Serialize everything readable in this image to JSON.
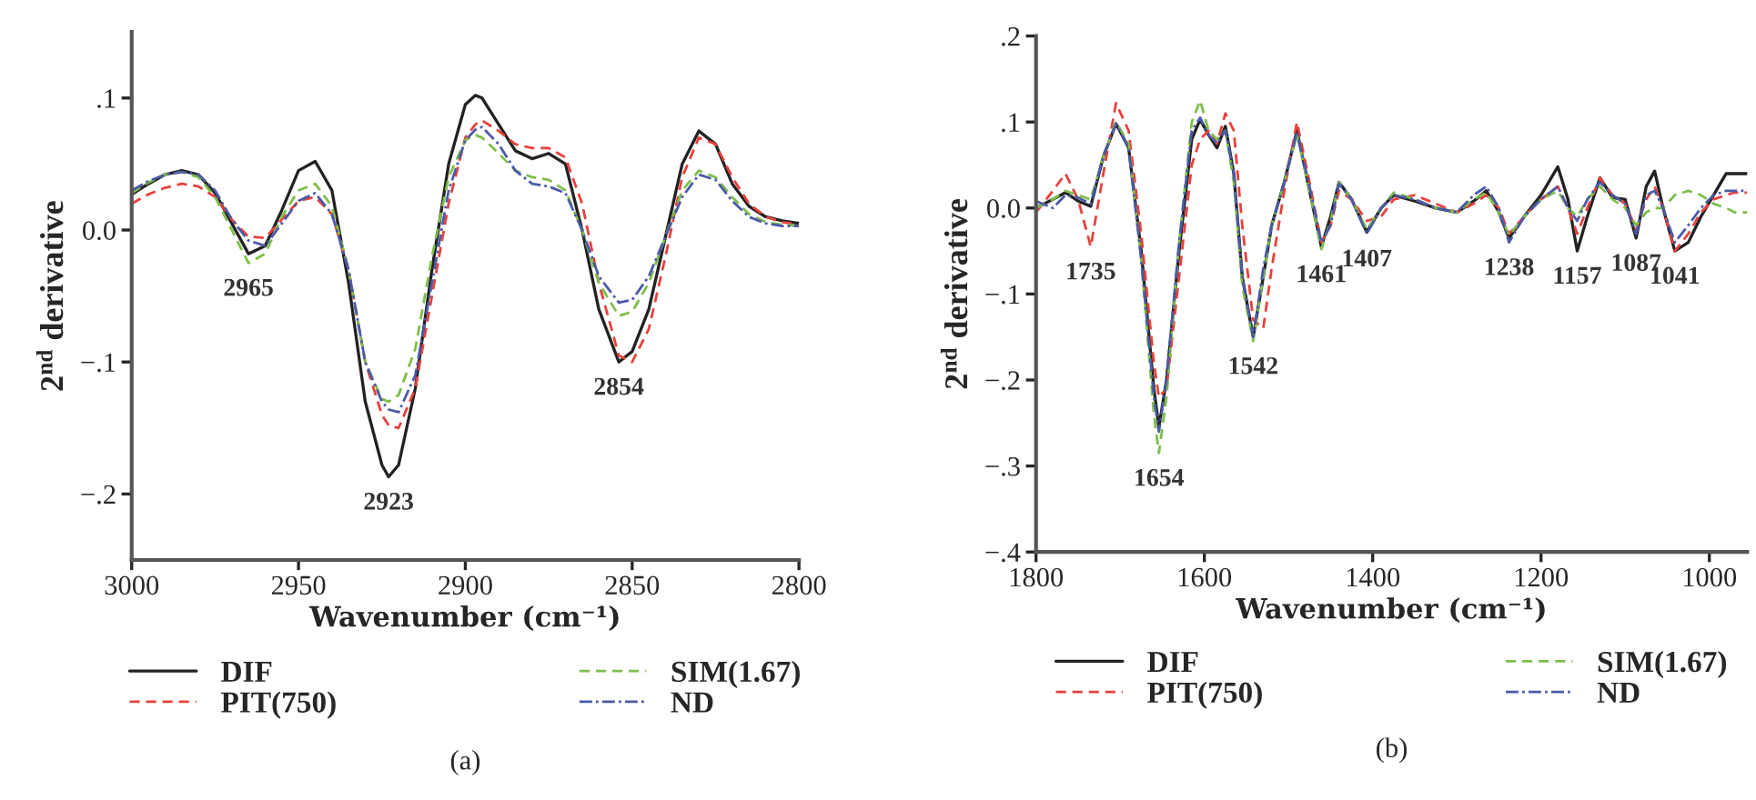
{
  "chart_data": [
    {
      "type": "line",
      "ylabel": "2$^{nd}$ derivative",
      "xlabel": "Wavenumber (cm⁻¹)",
      "x": [
        3000,
        2995,
        2990,
        2985,
        2980,
        2975,
        2970,
        2965,
        2960,
        2955,
        2950,
        2945,
        2940,
        2935,
        2930,
        2925,
        2923,
        2920,
        2915,
        2910,
        2905,
        2900,
        2897,
        2895,
        2890,
        2885,
        2880,
        2875,
        2870,
        2865,
        2860,
        2854,
        2850,
        2845,
        2840,
        2835,
        2830,
        2825,
        2820,
        2815,
        2810,
        2805,
        2800
      ],
      "series": [
        {
          "name": "DIF",
          "color": "#222222",
          "line_style": "solid",
          "values": [
            0.027,
            0.035,
            0.042,
            0.045,
            0.042,
            0.028,
            0.005,
            -0.018,
            -0.012,
            0.015,
            0.045,
            0.052,
            0.03,
            -0.04,
            -0.13,
            -0.178,
            -0.187,
            -0.178,
            -0.12,
            -0.03,
            0.05,
            0.095,
            0.102,
            0.1,
            0.08,
            0.06,
            0.054,
            0.058,
            0.05,
            0.0,
            -0.06,
            -0.1,
            -0.092,
            -0.06,
            -0.005,
            0.05,
            0.075,
            0.065,
            0.035,
            0.018,
            0.01,
            0.007,
            0.005
          ]
        },
        {
          "name": "PIT(750)",
          "color": "#e8413c",
          "line_style": "dashed",
          "values": [
            0.02,
            0.027,
            0.032,
            0.035,
            0.033,
            0.025,
            0.008,
            -0.005,
            -0.006,
            0.008,
            0.022,
            0.025,
            0.012,
            -0.03,
            -0.1,
            -0.14,
            -0.148,
            -0.15,
            -0.12,
            -0.05,
            0.02,
            0.07,
            0.08,
            0.083,
            0.075,
            0.065,
            0.062,
            0.062,
            0.055,
            0.02,
            -0.04,
            -0.095,
            -0.1,
            -0.075,
            -0.02,
            0.04,
            0.07,
            0.065,
            0.04,
            0.02,
            0.01,
            0.006,
            0.004
          ]
        },
        {
          "name": "SIM(1.67)",
          "color": "#7dbf4a",
          "line_style": "dashed",
          "values": [
            0.028,
            0.036,
            0.042,
            0.044,
            0.04,
            0.025,
            0.0,
            -0.025,
            -0.018,
            0.01,
            0.03,
            0.035,
            0.018,
            -0.03,
            -0.1,
            -0.128,
            -0.13,
            -0.125,
            -0.09,
            -0.02,
            0.04,
            0.068,
            0.072,
            0.07,
            0.058,
            0.045,
            0.04,
            0.038,
            0.03,
            0.0,
            -0.04,
            -0.065,
            -0.062,
            -0.04,
            -0.005,
            0.03,
            0.045,
            0.04,
            0.025,
            0.012,
            0.006,
            0.004,
            0.003
          ]
        },
        {
          "name": "ND",
          "color": "#4b5aa8",
          "line_style": "dashdot",
          "values": [
            0.03,
            0.037,
            0.042,
            0.044,
            0.042,
            0.03,
            0.008,
            -0.008,
            -0.012,
            0.005,
            0.022,
            0.028,
            0.012,
            -0.03,
            -0.1,
            -0.13,
            -0.136,
            -0.138,
            -0.11,
            -0.04,
            0.03,
            0.068,
            0.076,
            0.078,
            0.065,
            0.045,
            0.035,
            0.033,
            0.028,
            0.0,
            -0.035,
            -0.055,
            -0.053,
            -0.035,
            -0.005,
            0.025,
            0.042,
            0.038,
            0.022,
            0.01,
            0.005,
            0.003,
            0.003
          ]
        }
      ],
      "xlim": [
        3000,
        2800
      ],
      "xticks": [
        3000,
        2950,
        2900,
        2850,
        2800
      ],
      "ylim": [
        -0.25,
        0.15
      ],
      "yticks": [
        {
          "value": -0.2,
          "label": "−.2"
        },
        {
          "value": -0.1,
          "label": "−.1"
        },
        {
          "value": 0.0,
          "label": "0.0"
        },
        {
          "value": 0.1,
          "label": ".1"
        }
      ],
      "annotations": [
        {
          "text": "2965",
          "x": 2965,
          "y": -0.025
        },
        {
          "text": "2923",
          "x": 2923,
          "y": -0.187
        },
        {
          "text": "2854",
          "x": 2854,
          "y": -0.1
        },
        "(a)"
      ],
      "grid": false,
      "legend": "bottom",
      "marker": "none"
    },
    {
      "type": "line",
      "ylabel": "2$^{nd}$ derivative",
      "xlabel": "Wavenumber (cm⁻¹)",
      "x": [
        1800,
        1780,
        1765,
        1750,
        1735,
        1720,
        1705,
        1690,
        1675,
        1660,
        1654,
        1645,
        1630,
        1615,
        1605,
        1595,
        1585,
        1575,
        1565,
        1555,
        1542,
        1530,
        1520,
        1505,
        1490,
        1475,
        1461,
        1450,
        1440,
        1425,
        1407,
        1390,
        1375,
        1350,
        1325,
        1300,
        1280,
        1265,
        1250,
        1238,
        1220,
        1200,
        1180,
        1168,
        1157,
        1145,
        1130,
        1115,
        1100,
        1087,
        1075,
        1065,
        1055,
        1041,
        1025,
        1010,
        995,
        980,
        970,
        955
      ],
      "series": [
        {
          "name": "DIF",
          "color": "#222222",
          "line_style": "solid",
          "values": [
            0.0,
            0.01,
            0.018,
            0.008,
            0.002,
            0.06,
            0.098,
            0.07,
            -0.05,
            -0.21,
            -0.255,
            -0.2,
            -0.05,
            0.08,
            0.103,
            0.085,
            0.07,
            0.095,
            0.04,
            -0.08,
            -0.15,
            -0.08,
            -0.02,
            0.03,
            0.09,
            0.02,
            -0.045,
            -0.01,
            0.03,
            0.01,
            -0.028,
            0.0,
            0.015,
            0.008,
            0.0,
            -0.005,
            0.008,
            0.02,
            -0.005,
            -0.035,
            -0.01,
            0.015,
            0.048,
            0.01,
            -0.05,
            -0.01,
            0.035,
            0.012,
            0.01,
            -0.035,
            0.025,
            0.043,
            0.0,
            -0.05,
            -0.04,
            -0.01,
            0.015,
            0.04,
            0.04,
            0.04
          ]
        },
        {
          "name": "PIT(750)",
          "color": "#e8413c",
          "line_style": "dashed",
          "values": [
            -0.005,
            0.02,
            0.04,
            0.01,
            -0.045,
            0.04,
            0.122,
            0.09,
            -0.03,
            -0.18,
            -0.22,
            -0.21,
            -0.08,
            0.05,
            0.08,
            0.09,
            0.075,
            0.11,
            0.09,
            -0.02,
            -0.13,
            -0.14,
            -0.07,
            0.02,
            0.1,
            0.03,
            -0.04,
            -0.02,
            0.02,
            0.01,
            -0.015,
            -0.01,
            0.01,
            0.015,
            0.005,
            -0.005,
            0.005,
            0.015,
            0.0,
            -0.03,
            -0.01,
            0.01,
            0.025,
            0.0,
            -0.03,
            0.0,
            0.035,
            0.015,
            0.005,
            -0.025,
            0.01,
            0.025,
            0.0,
            -0.05,
            -0.03,
            -0.005,
            0.01,
            0.015,
            0.018,
            0.018
          ]
        },
        {
          "name": "SIM(1.67)",
          "color": "#7dbf4a",
          "line_style": "dashed",
          "values": [
            0.0,
            0.01,
            0.02,
            0.015,
            0.01,
            0.06,
            0.1,
            0.075,
            -0.06,
            -0.24,
            -0.285,
            -0.22,
            -0.04,
            0.1,
            0.125,
            0.09,
            0.08,
            0.09,
            0.03,
            -0.09,
            -0.155,
            -0.08,
            -0.02,
            0.03,
            0.085,
            0.02,
            -0.048,
            -0.015,
            0.03,
            0.01,
            -0.025,
            0.0,
            0.018,
            0.01,
            0.0,
            -0.005,
            0.01,
            0.018,
            -0.005,
            -0.032,
            -0.01,
            0.01,
            0.02,
            0.0,
            -0.01,
            0.01,
            0.025,
            0.01,
            0.0,
            -0.02,
            -0.005,
            0.0,
            0.0,
            0.015,
            0.02,
            0.015,
            0.005,
            0.0,
            -0.005,
            -0.005
          ]
        },
        {
          "name": "ND",
          "color": "#4b5aa8",
          "line_style": "dashdot",
          "values": [
            0.008,
            0.0,
            0.015,
            0.012,
            0.005,
            0.06,
            0.098,
            0.07,
            -0.06,
            -0.22,
            -0.26,
            -0.2,
            -0.04,
            0.09,
            0.105,
            0.085,
            0.075,
            0.09,
            0.04,
            -0.08,
            -0.15,
            -0.07,
            -0.02,
            0.03,
            0.088,
            0.025,
            -0.04,
            -0.02,
            0.028,
            0.01,
            -0.03,
            0.0,
            0.015,
            0.01,
            0.0,
            -0.005,
            0.015,
            0.025,
            0.0,
            -0.04,
            -0.01,
            0.01,
            0.025,
            0.0,
            -0.015,
            0.01,
            0.03,
            0.015,
            0.005,
            -0.03,
            0.015,
            0.02,
            0.0,
            -0.04,
            -0.02,
            0.0,
            0.015,
            0.02,
            0.02,
            0.02
          ]
        }
      ],
      "xlim": [
        1800,
        955
      ],
      "xticks": [
        1800,
        1600,
        1400,
        1200,
        1000
      ],
      "ylim": [
        -0.4,
        0.2
      ],
      "yticks": [
        {
          "value": -0.4,
          "label": "−.4"
        },
        {
          "value": -0.3,
          "label": "−.3"
        },
        {
          "value": -0.2,
          "label": "−.2"
        },
        {
          "value": -0.1,
          "label": "−.1"
        },
        {
          "value": 0.0,
          "label": "0.0"
        },
        {
          "value": 0.1,
          "label": ".1"
        },
        {
          "value": 0.2,
          "label": ".2"
        }
      ],
      "annotations": [
        {
          "text": "1735",
          "x": 1735,
          "y": -0.045
        },
        {
          "text": "1654",
          "x": 1654,
          "y": -0.285
        },
        {
          "text": "1542",
          "x": 1542,
          "y": -0.155
        },
        {
          "text": "1461",
          "x": 1461,
          "y": -0.048
        },
        {
          "text": "1407",
          "x": 1407,
          "y": -0.03
        },
        {
          "text": "1238",
          "x": 1238,
          "y": -0.04
        },
        {
          "text": "1157",
          "x": 1157,
          "y": -0.05
        },
        {
          "text": "1087",
          "x": 1087,
          "y": -0.035
        },
        {
          "text": "1041",
          "x": 1041,
          "y": -0.05
        },
        "(b)"
      ],
      "grid": false,
      "legend": "bottom",
      "marker": "none"
    }
  ]
}
